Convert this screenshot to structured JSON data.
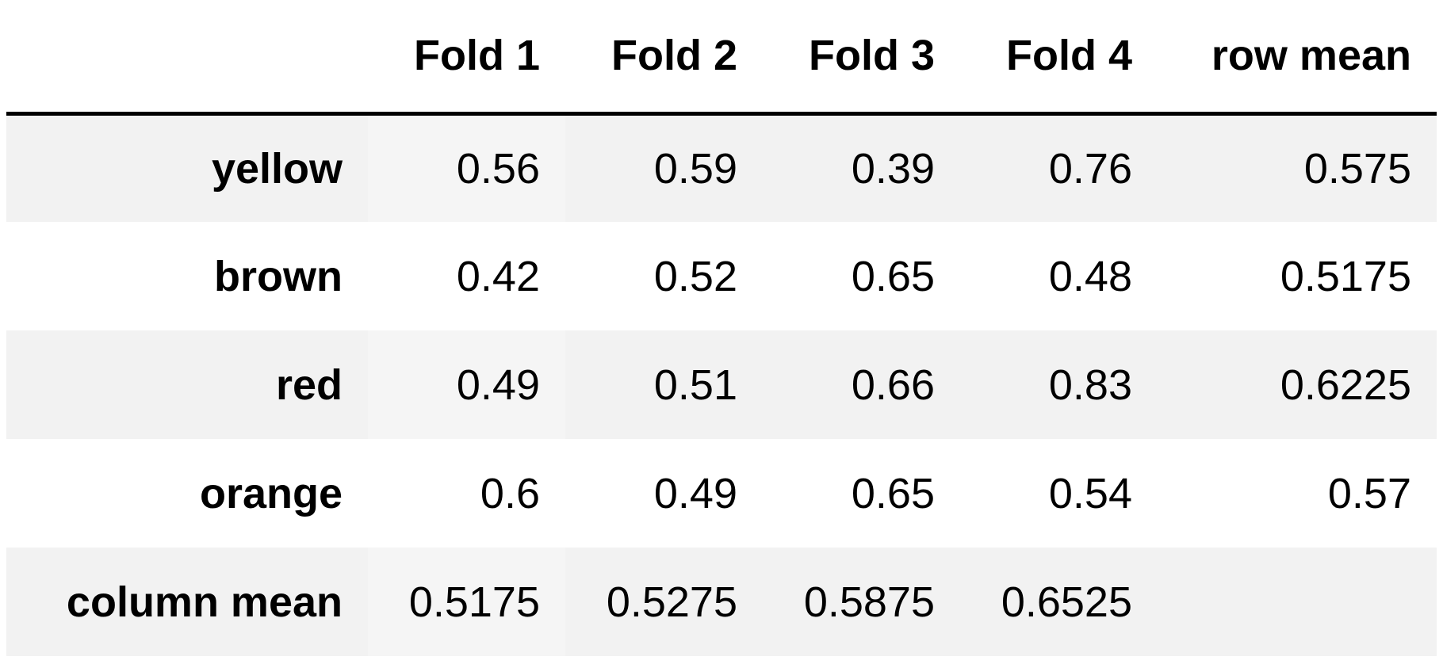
{
  "table": {
    "corner": "",
    "columns": [
      "Fold 1",
      "Fold 2",
      "Fold 3",
      "Fold 4",
      "row mean"
    ],
    "rows": [
      {
        "label": "yellow",
        "values": [
          "0.56",
          "0.59",
          "0.39",
          "0.76",
          "0.575"
        ]
      },
      {
        "label": "brown",
        "values": [
          "0.42",
          "0.52",
          "0.65",
          "0.48",
          "0.5175"
        ]
      },
      {
        "label": "red",
        "values": [
          "0.49",
          "0.51",
          "0.66",
          "0.83",
          "0.6225"
        ]
      },
      {
        "label": "orange",
        "values": [
          "0.6",
          "0.49",
          "0.65",
          "0.54",
          "0.57"
        ]
      },
      {
        "label": "column mean",
        "values": [
          "0.5175",
          "0.5275",
          "0.5875",
          "0.6525",
          ""
        ]
      }
    ]
  },
  "colors": {
    "header_rule": "#000000",
    "stripe": "#f2f2f2",
    "background": "#ffffff"
  }
}
